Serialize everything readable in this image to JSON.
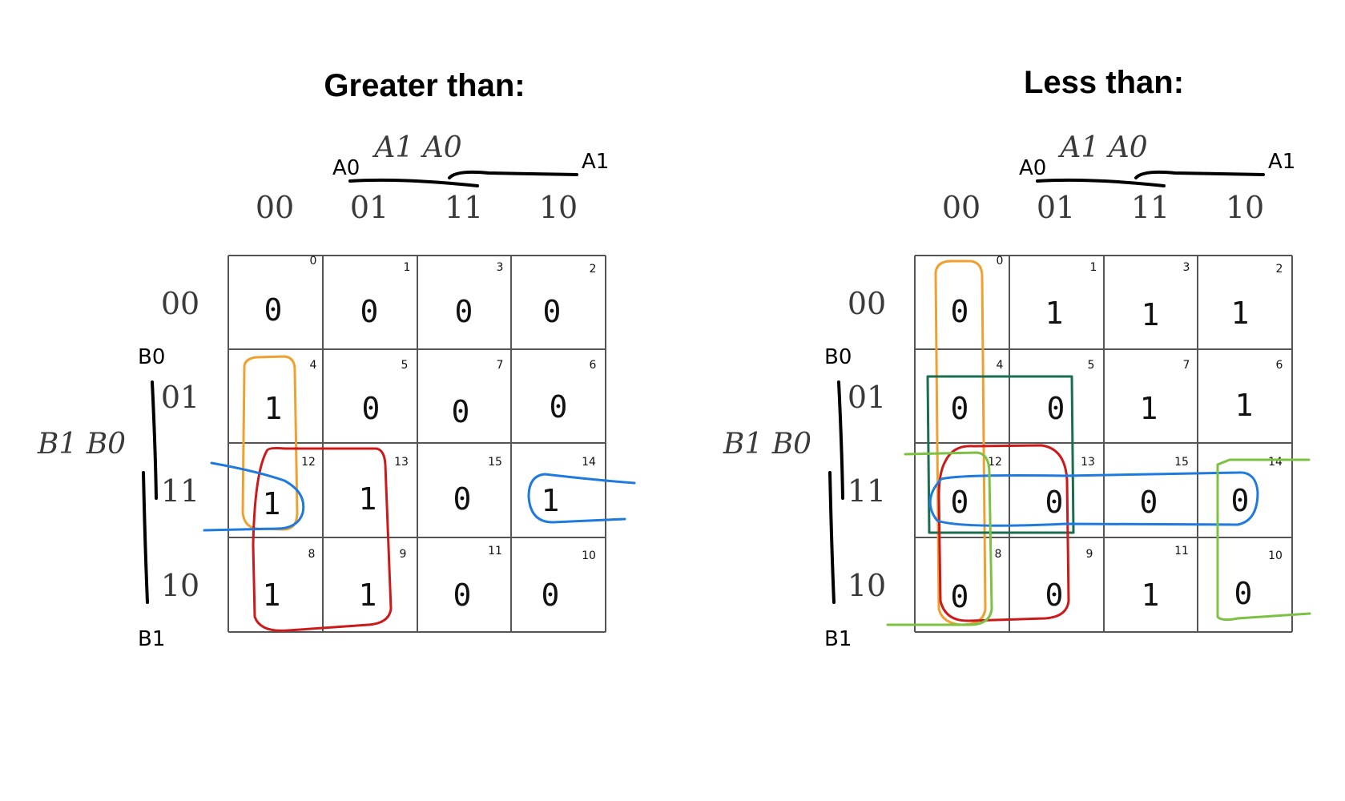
{
  "maps": [
    {
      "title": "Greater than:",
      "col_vars": "A1  A0",
      "row_vars": "B1  B0",
      "col_labels": [
        "00",
        "01",
        "11",
        "10"
      ],
      "row_labels": [
        "00",
        "01",
        "11",
        "10"
      ],
      "cells": [
        [
          {
            "v": "0",
            "i": "0"
          },
          {
            "v": "0",
            "i": "1"
          },
          {
            "v": "0",
            "i": "3"
          },
          {
            "v": "0",
            "i": "2"
          }
        ],
        [
          {
            "v": "1",
            "i": "4"
          },
          {
            "v": "0",
            "i": "5"
          },
          {
            "v": "0",
            "i": "7"
          },
          {
            "v": "0",
            "i": "6"
          }
        ],
        [
          {
            "v": "1",
            "i": "12"
          },
          {
            "v": "1",
            "i": "13"
          },
          {
            "v": "0",
            "i": "15"
          },
          {
            "v": "1",
            "i": "14"
          }
        ],
        [
          {
            "v": "1",
            "i": "8"
          },
          {
            "v": "1",
            "i": "9"
          },
          {
            "v": "0",
            "i": "11"
          },
          {
            "v": "0",
            "i": "10"
          }
        ]
      ],
      "hand_labels": {
        "a0": "A0",
        "a1": "A1",
        "b0": "B0",
        "b1": "B1"
      },
      "group_colors": {
        "orange": "#f0a030",
        "red": "#cc1a1a",
        "blue": "#1f7ae0"
      }
    },
    {
      "title": "Less than:",
      "col_vars": "A1  A0",
      "row_vars": "B1  B0",
      "col_labels": [
        "00",
        "01",
        "11",
        "10"
      ],
      "row_labels": [
        "00",
        "01",
        "11",
        "10"
      ],
      "cells": [
        [
          {
            "v": "0",
            "i": "0"
          },
          {
            "v": "1",
            "i": "1"
          },
          {
            "v": "1",
            "i": "3"
          },
          {
            "v": "1",
            "i": "2"
          }
        ],
        [
          {
            "v": "0",
            "i": "4"
          },
          {
            "v": "0",
            "i": "5"
          },
          {
            "v": "1",
            "i": "7"
          },
          {
            "v": "1",
            "i": "6"
          }
        ],
        [
          {
            "v": "0",
            "i": "12"
          },
          {
            "v": "0",
            "i": "13"
          },
          {
            "v": "0",
            "i": "15"
          },
          {
            "v": "0",
            "i": "14"
          }
        ],
        [
          {
            "v": "0",
            "i": "8"
          },
          {
            "v": "0",
            "i": "9"
          },
          {
            "v": "1",
            "i": "11"
          },
          {
            "v": "0",
            "i": "10"
          }
        ]
      ],
      "hand_labels": {
        "a0": "A0",
        "a1": "A1",
        "b0": "B0",
        "b1": "B1"
      },
      "group_colors": {
        "orange": "#f0a030",
        "red": "#cc1a1a",
        "blue": "#1f7ae0",
        "dark_green": "#1a6e50",
        "light_green": "#7cc142"
      }
    }
  ]
}
